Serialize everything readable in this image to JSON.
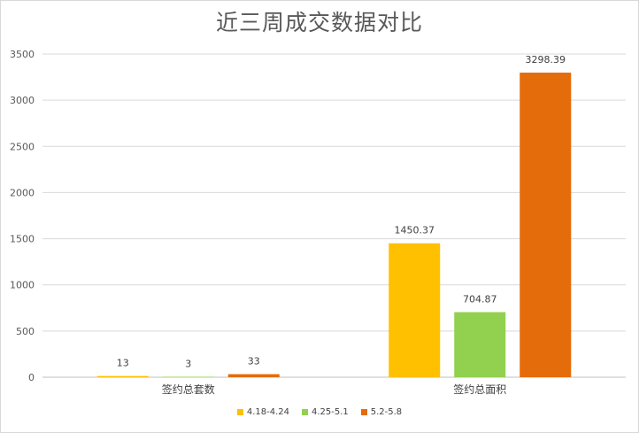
{
  "chart_data": {
    "type": "bar",
    "title": "近三周成交数据对比",
    "categories": [
      "签约总套数",
      "签约总面积"
    ],
    "series": [
      {
        "name": "4.18-4.24",
        "color": "#ffc000",
        "values": [
          13,
          1450.37
        ],
        "labels": [
          "13",
          "1450.37"
        ]
      },
      {
        "name": "4.25-5.1",
        "color": "#92d050",
        "values": [
          3,
          704.87
        ],
        "labels": [
          "3",
          "704.87"
        ]
      },
      {
        "name": "5.2-5.8",
        "color": "#e46c0a",
        "values": [
          33,
          3298.39
        ],
        "labels": [
          "33",
          "3298.39"
        ]
      }
    ],
    "yticks": [
      "0",
      "500",
      "1000",
      "1500",
      "2000",
      "2500",
      "3000",
      "3500"
    ],
    "ylim": [
      0,
      3500
    ],
    "grid": true,
    "legend_position": "bottom"
  }
}
